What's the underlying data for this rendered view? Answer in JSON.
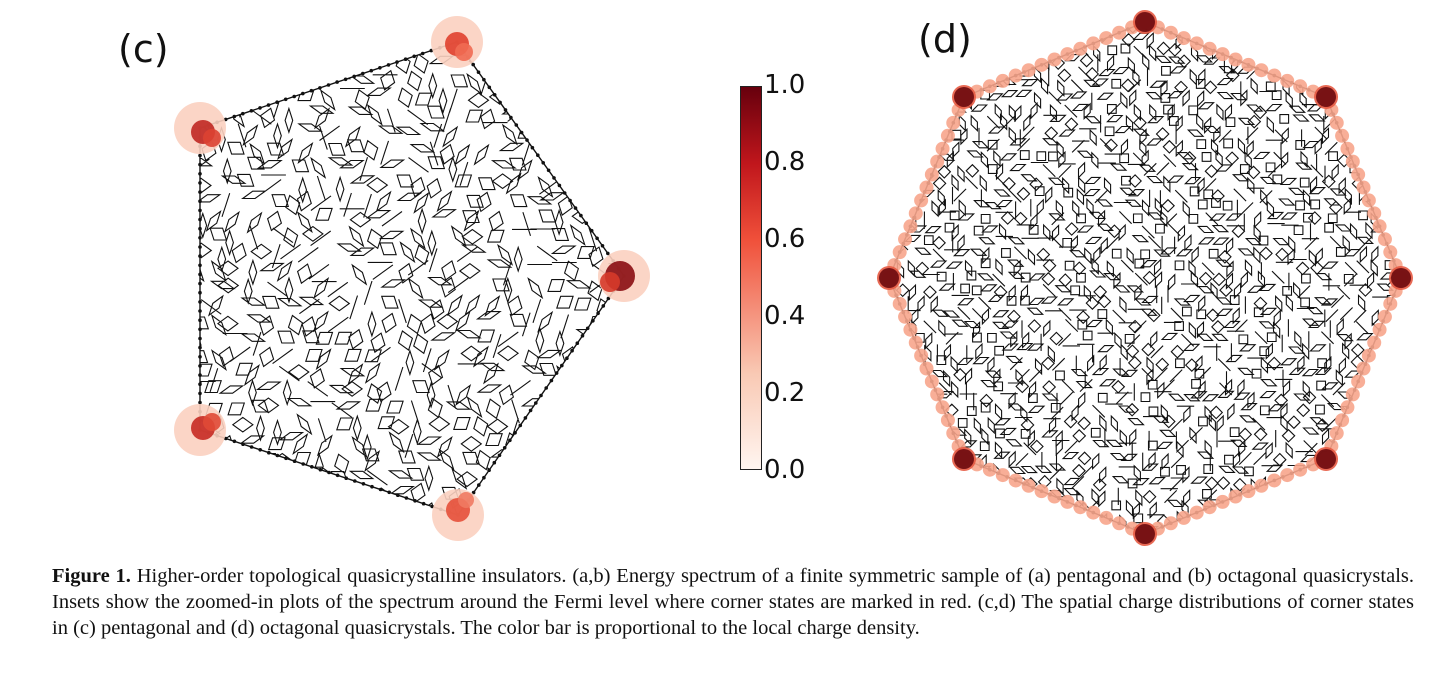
{
  "panels": {
    "c": {
      "label": "(c)"
    },
    "d": {
      "label": "(d)"
    }
  },
  "colorbar": {
    "ticks": [
      "1.0",
      "0.8",
      "0.6",
      "0.4",
      "0.2",
      "0.0"
    ],
    "colors": {
      "low": "#fff5f0",
      "mid": "#f0503a",
      "high": "#67000d"
    }
  },
  "caption": {
    "figure_label": "Figure 1.",
    "text": "Higher-order topological quasicrystalline insulators. (a,b) Energy spectrum of a finite symmetric sample of (a) pentagonal and (b) octagonal quasicrystals. Insets show the zoomed-in plots of the spectrum around the Fermi level where corner states are marked in red. (c,d) The spatial charge distributions of corner states in (c) pentagonal and (d) octagonal quasicrystals. The color bar is proportional to the local charge density."
  }
}
